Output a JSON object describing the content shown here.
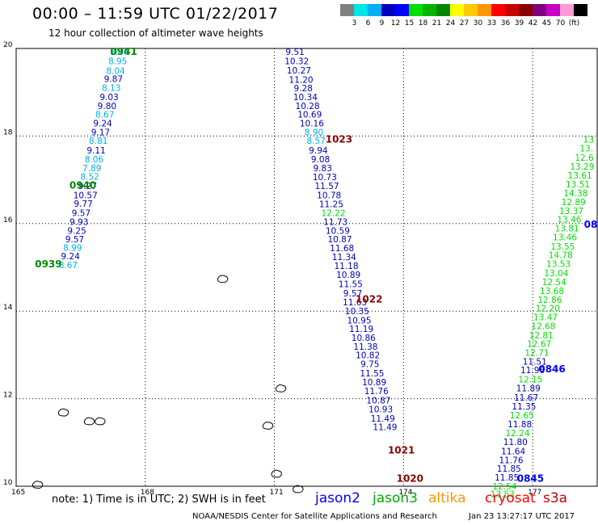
{
  "title": "00:00 – 11:59 UTC 01/22/2017",
  "subtitle": "12 hour collection of altimeter wave heights",
  "legend": {
    "colors": [
      "#808080",
      "#00e5e5",
      "#00b0f0",
      "#0000c0",
      "#0000ff",
      "#00e000",
      "#00b400",
      "#008800",
      "#ffff00",
      "#ffc800",
      "#ff9600",
      "#ff0000",
      "#c80000",
      "#8c0000",
      "#800080",
      "#c800c8",
      "#ff9ad5",
      "#000000"
    ],
    "labels": [
      "3",
      "6",
      "9",
      "12",
      "15",
      "18",
      "21",
      "24",
      "27",
      "30",
      "33",
      "36",
      "39",
      "42",
      "45",
      "70",
      "(ft)"
    ]
  },
  "chart_data": {
    "type": "map",
    "xlim": [
      165,
      178.5
    ],
    "ylim": [
      10,
      20
    ],
    "x_ticks": [
      {
        "v": 165,
        "label": "165"
      },
      {
        "v": 168,
        "label": "168"
      },
      {
        "v": 171,
        "label": "171"
      },
      {
        "v": 174,
        "label": "174"
      },
      {
        "v": 177,
        "label": "177"
      }
    ],
    "y_ticks": [
      {
        "v": 20,
        "label": "20"
      },
      {
        "v": 18,
        "label": "18"
      },
      {
        "v": 16,
        "label": "16"
      },
      {
        "v": 14,
        "label": "14"
      },
      {
        "v": 12,
        "label": "12"
      },
      {
        "v": 10,
        "label": "10"
      }
    ],
    "tracks": [
      {
        "time_labels": [
          {
            "lon": 167.5,
            "lat": 19.85,
            "text": "0941",
            "color": "#008800"
          },
          {
            "lon": 166.55,
            "lat": 16.8,
            "text": "0940",
            "color": "#008800"
          },
          {
            "lon": 165.75,
            "lat": 15.0,
            "text": "0939",
            "color": "#008800"
          }
        ],
        "points": [
          {
            "lon": 167.4,
            "lat": 19.85,
            "v": "8.46",
            "c": "#00b0f0"
          },
          {
            "lon": 167.36,
            "lat": 19.64,
            "v": "8.95",
            "c": "#00b0f0"
          },
          {
            "lon": 167.31,
            "lat": 19.42,
            "v": "8.04",
            "c": "#00b0f0"
          },
          {
            "lon": 167.26,
            "lat": 19.23,
            "v": "9.87",
            "c": "#0000c0"
          },
          {
            "lon": 167.21,
            "lat": 19.03,
            "v": "8.13",
            "c": "#00b0f0"
          },
          {
            "lon": 167.16,
            "lat": 18.82,
            "v": "9.03",
            "c": "#0000c0"
          },
          {
            "lon": 167.11,
            "lat": 18.62,
            "v": "9.80",
            "c": "#0000c0"
          },
          {
            "lon": 167.06,
            "lat": 18.42,
            "v": "8.67",
            "c": "#00b0f0"
          },
          {
            "lon": 167.01,
            "lat": 18.22,
            "v": "9.24",
            "c": "#0000c0"
          },
          {
            "lon": 166.96,
            "lat": 18.02,
            "v": "9.17",
            "c": "#0000c0"
          },
          {
            "lon": 166.91,
            "lat": 17.82,
            "v": "8.81",
            "c": "#00b0f0"
          },
          {
            "lon": 166.86,
            "lat": 17.6,
            "v": "9.11",
            "c": "#0000c0"
          },
          {
            "lon": 166.81,
            "lat": 17.4,
            "v": "8.06",
            "c": "#00b0f0"
          },
          {
            "lon": 166.76,
            "lat": 17.2,
            "v": "7.89",
            "c": "#00b0f0"
          },
          {
            "lon": 166.71,
            "lat": 17.0,
            "v": "8.52",
            "c": "#00b0f0"
          },
          {
            "lon": 166.66,
            "lat": 16.79,
            "v": "9.27",
            "c": "#0000c0"
          },
          {
            "lon": 166.61,
            "lat": 16.58,
            "v": "10.57",
            "c": "#0000c0"
          },
          {
            "lon": 166.56,
            "lat": 16.38,
            "v": "9.77",
            "c": "#0000c0"
          },
          {
            "lon": 166.51,
            "lat": 16.17,
            "v": "9.57",
            "c": "#0000c0"
          },
          {
            "lon": 166.46,
            "lat": 15.97,
            "v": "9.93",
            "c": "#0000c0"
          },
          {
            "lon": 166.41,
            "lat": 15.77,
            "v": "9.25",
            "c": "#0000c0"
          },
          {
            "lon": 166.36,
            "lat": 15.57,
            "v": "9.57",
            "c": "#0000c0"
          },
          {
            "lon": 166.31,
            "lat": 15.38,
            "v": "8.99",
            "c": "#00b0f0"
          },
          {
            "lon": 166.26,
            "lat": 15.18,
            "v": "9.24",
            "c": "#0000c0"
          },
          {
            "lon": 166.21,
            "lat": 14.98,
            "v": "8.67",
            "c": "#00b0f0"
          }
        ]
      },
      {
        "time_labels": [
          {
            "lon": 172.5,
            "lat": 17.85,
            "text": "1023",
            "color": "#8c0000"
          },
          {
            "lon": 173.2,
            "lat": 14.2,
            "text": "1022",
            "color": "#8c0000"
          },
          {
            "lon": 173.95,
            "lat": 10.75,
            "text": "1021",
            "color": "#8c0000"
          },
          {
            "lon": 174.15,
            "lat": 10.1,
            "text": "1020",
            "color": "#8c0000"
          }
        ],
        "points": [
          {
            "lon": 171.48,
            "lat": 19.85,
            "v": "9.51",
            "c": "#0000c0"
          },
          {
            "lon": 171.52,
            "lat": 19.64,
            "v": "10.32",
            "c": "#0000c0"
          },
          {
            "lon": 171.57,
            "lat": 19.43,
            "v": "10.27",
            "c": "#0000c0"
          },
          {
            "lon": 171.62,
            "lat": 19.22,
            "v": "11.20",
            "c": "#0000c0"
          },
          {
            "lon": 171.67,
            "lat": 19.02,
            "v": "9.28",
            "c": "#0000c0"
          },
          {
            "lon": 171.72,
            "lat": 18.82,
            "v": "10.34",
            "c": "#0000c0"
          },
          {
            "lon": 171.77,
            "lat": 18.62,
            "v": "10.28",
            "c": "#0000c0"
          },
          {
            "lon": 171.82,
            "lat": 18.42,
            "v": "10.69",
            "c": "#0000c0"
          },
          {
            "lon": 171.87,
            "lat": 18.22,
            "v": "10.16",
            "c": "#0000c0"
          },
          {
            "lon": 171.92,
            "lat": 18.02,
            "v": "8.90",
            "c": "#00b0f0"
          },
          {
            "lon": 171.97,
            "lat": 17.82,
            "v": "8.57",
            "c": "#00b0f0"
          },
          {
            "lon": 172.02,
            "lat": 17.6,
            "v": "9.94",
            "c": "#0000c0"
          },
          {
            "lon": 172.07,
            "lat": 17.4,
            "v": "9.08",
            "c": "#0000c0"
          },
          {
            "lon": 172.12,
            "lat": 17.2,
            "v": "9.83",
            "c": "#0000c0"
          },
          {
            "lon": 172.17,
            "lat": 16.99,
            "v": "10.73",
            "c": "#0000c0"
          },
          {
            "lon": 172.22,
            "lat": 16.79,
            "v": "11.57",
            "c": "#0000c0"
          },
          {
            "lon": 172.27,
            "lat": 16.58,
            "v": "10.78",
            "c": "#0000c0"
          },
          {
            "lon": 172.32,
            "lat": 16.37,
            "v": "11.25",
            "c": "#0000c0"
          },
          {
            "lon": 172.37,
            "lat": 16.17,
            "v": "12.22",
            "c": "#00e000"
          },
          {
            "lon": 172.42,
            "lat": 15.97,
            "v": "11.73",
            "c": "#0000c0"
          },
          {
            "lon": 172.47,
            "lat": 15.77,
            "v": "10.59",
            "c": "#0000c0"
          },
          {
            "lon": 172.52,
            "lat": 15.57,
            "v": "10.87",
            "c": "#0000c0"
          },
          {
            "lon": 172.57,
            "lat": 15.37,
            "v": "11.68",
            "c": "#0000c0"
          },
          {
            "lon": 172.62,
            "lat": 15.17,
            "v": "11.34",
            "c": "#0000c0"
          },
          {
            "lon": 172.67,
            "lat": 14.96,
            "v": "11.18",
            "c": "#0000c0"
          },
          {
            "lon": 172.72,
            "lat": 14.76,
            "v": "10.89",
            "c": "#0000c0"
          },
          {
            "lon": 172.77,
            "lat": 14.55,
            "v": "11.55",
            "c": "#0000c0"
          },
          {
            "lon": 172.82,
            "lat": 14.34,
            "v": "9.57",
            "c": "#0000c0"
          },
          {
            "lon": 172.87,
            "lat": 14.13,
            "v": "11.63",
            "c": "#0000c0"
          },
          {
            "lon": 172.92,
            "lat": 13.93,
            "v": "10.35",
            "c": "#0000c0"
          },
          {
            "lon": 172.97,
            "lat": 13.72,
            "v": "10.95",
            "c": "#0000c0"
          },
          {
            "lon": 173.02,
            "lat": 13.52,
            "v": "11.19",
            "c": "#0000c0"
          },
          {
            "lon": 173.07,
            "lat": 13.32,
            "v": "10.86",
            "c": "#0000c0"
          },
          {
            "lon": 173.12,
            "lat": 13.12,
            "v": "11.38",
            "c": "#0000c0"
          },
          {
            "lon": 173.17,
            "lat": 12.92,
            "v": "10.82",
            "c": "#0000c0"
          },
          {
            "lon": 173.22,
            "lat": 12.72,
            "v": "9.75",
            "c": "#0000c0"
          },
          {
            "lon": 173.27,
            "lat": 12.51,
            "v": "11.55",
            "c": "#0000c0"
          },
          {
            "lon": 173.32,
            "lat": 12.31,
            "v": "10.89",
            "c": "#0000c0"
          },
          {
            "lon": 173.37,
            "lat": 12.1,
            "v": "11.76",
            "c": "#0000c0"
          },
          {
            "lon": 173.42,
            "lat": 11.89,
            "v": "10.87",
            "c": "#0000c0"
          },
          {
            "lon": 173.47,
            "lat": 11.69,
            "v": "10.93",
            "c": "#0000c0"
          },
          {
            "lon": 173.52,
            "lat": 11.48,
            "v": "11.49",
            "c": "#0000c0"
          },
          {
            "lon": 173.57,
            "lat": 11.28,
            "v": "11.49",
            "c": "#0000c0"
          }
        ]
      },
      {
        "time_labels": [
          {
            "lon": 177.45,
            "lat": 12.6,
            "text": "0846",
            "color": "#0000ff"
          },
          {
            "lon": 176.95,
            "lat": 10.1,
            "text": "0845",
            "color": "#0000ff"
          },
          {
            "lon": 178.35,
            "lat": 15.9,
            "text": "08",
            "color": "#0000ff"
          }
        ],
        "points": [
          {
            "lon": 178.3,
            "lat": 17.85,
            "v": "13",
            "c": "#00e000"
          },
          {
            "lon": 178.25,
            "lat": 17.65,
            "v": "13.",
            "c": "#00e000"
          },
          {
            "lon": 178.2,
            "lat": 17.44,
            "v": "12.6",
            "c": "#00e000"
          },
          {
            "lon": 178.15,
            "lat": 17.23,
            "v": "13.29",
            "c": "#00e000"
          },
          {
            "lon": 178.1,
            "lat": 17.03,
            "v": "13.61",
            "c": "#00e000"
          },
          {
            "lon": 178.05,
            "lat": 16.83,
            "v": "13.51",
            "c": "#00e000"
          },
          {
            "lon": 178.0,
            "lat": 16.62,
            "v": "14.38",
            "c": "#00e000"
          },
          {
            "lon": 177.95,
            "lat": 16.42,
            "v": "12.89",
            "c": "#00e000"
          },
          {
            "lon": 177.9,
            "lat": 16.22,
            "v": "13.37",
            "c": "#00e000"
          },
          {
            "lon": 177.85,
            "lat": 16.02,
            "v": "13.46",
            "c": "#00e000"
          },
          {
            "lon": 177.8,
            "lat": 15.82,
            "v": "13.81",
            "c": "#00e000"
          },
          {
            "lon": 177.75,
            "lat": 15.62,
            "v": "13.46",
            "c": "#00e000"
          },
          {
            "lon": 177.7,
            "lat": 15.41,
            "v": "13.55",
            "c": "#00e000"
          },
          {
            "lon": 177.65,
            "lat": 15.21,
            "v": "14.78",
            "c": "#00e000"
          },
          {
            "lon": 177.6,
            "lat": 15.01,
            "v": "13.53",
            "c": "#00e000"
          },
          {
            "lon": 177.55,
            "lat": 14.8,
            "v": "13.04",
            "c": "#00e000"
          },
          {
            "lon": 177.5,
            "lat": 14.59,
            "v": "12.54",
            "c": "#00e000"
          },
          {
            "lon": 177.45,
            "lat": 14.39,
            "v": "13.68",
            "c": "#00e000"
          },
          {
            "lon": 177.4,
            "lat": 14.19,
            "v": "12.86",
            "c": "#00e000"
          },
          {
            "lon": 177.35,
            "lat": 13.99,
            "v": "12.20",
            "c": "#00e000"
          },
          {
            "lon": 177.3,
            "lat": 13.79,
            "v": "13.47",
            "c": "#00e000"
          },
          {
            "lon": 177.25,
            "lat": 13.59,
            "v": "12.68",
            "c": "#00e000"
          },
          {
            "lon": 177.2,
            "lat": 13.38,
            "v": "12.81",
            "c": "#00e000"
          },
          {
            "lon": 177.15,
            "lat": 13.18,
            "v": "12.67",
            "c": "#00e000"
          },
          {
            "lon": 177.1,
            "lat": 12.98,
            "v": "12.71",
            "c": "#00e000"
          },
          {
            "lon": 177.05,
            "lat": 12.78,
            "v": "11.51",
            "c": "#0000c0"
          },
          {
            "lon": 177.0,
            "lat": 12.58,
            "v": "11.96",
            "c": "#0000c0"
          },
          {
            "lon": 176.95,
            "lat": 12.37,
            "v": "12.15",
            "c": "#00e000"
          },
          {
            "lon": 176.9,
            "lat": 12.17,
            "v": "11.89",
            "c": "#0000c0"
          },
          {
            "lon": 176.85,
            "lat": 11.96,
            "v": "11.67",
            "c": "#0000c0"
          },
          {
            "lon": 176.8,
            "lat": 11.75,
            "v": "11.35",
            "c": "#0000c0"
          },
          {
            "lon": 176.75,
            "lat": 11.55,
            "v": "12.65",
            "c": "#00e000"
          },
          {
            "lon": 176.7,
            "lat": 11.35,
            "v": "11.88",
            "c": "#0000c0"
          },
          {
            "lon": 176.65,
            "lat": 11.14,
            "v": "12.24",
            "c": "#00e000"
          },
          {
            "lon": 176.6,
            "lat": 10.94,
            "v": "11.80",
            "c": "#0000c0"
          },
          {
            "lon": 176.55,
            "lat": 10.73,
            "v": "11.64",
            "c": "#0000c0"
          },
          {
            "lon": 176.5,
            "lat": 10.53,
            "v": "11.76",
            "c": "#0000c0"
          },
          {
            "lon": 176.45,
            "lat": 10.33,
            "v": "11.85",
            "c": "#0000c0"
          },
          {
            "lon": 176.4,
            "lat": 10.13,
            "v": "11.85",
            "c": "#0000c0"
          },
          {
            "lon": 176.35,
            "lat": 9.93,
            "v": "12.54",
            "c": "#00e000"
          },
          {
            "lon": 176.3,
            "lat": 9.75,
            "v": "13.53",
            "c": "#00e000"
          }
        ]
      }
    ],
    "islands": [
      {
        "lon": 166.7,
        "lat": 11.5
      },
      {
        "lon": 166.1,
        "lat": 11.7
      },
      {
        "lon": 166.95,
        "lat": 11.5
      },
      {
        "lon": 165.5,
        "lat": 10.05
      },
      {
        "lon": 169.8,
        "lat": 14.75
      },
      {
        "lon": 171.15,
        "lat": 12.25
      },
      {
        "lon": 170.85,
        "lat": 11.4
      },
      {
        "lon": 171.05,
        "lat": 10.3
      },
      {
        "lon": 171.55,
        "lat": 9.95
      }
    ]
  },
  "note": "note: 1) Time is in UTC; 2) SWH is in feet",
  "satellites": [
    {
      "name": "jason2",
      "color": "#0000ff"
    },
    {
      "name": "jason3",
      "color": "#00aa00"
    },
    {
      "name": "altika",
      "color": "#ff9600"
    },
    {
      "name": "cryosat",
      "color": "#ff0000"
    },
    {
      "name": "s3a",
      "color": "#c80000"
    }
  ],
  "credit": "NOAA/NESDIS Center for Satellite Applications and Research",
  "timestamp": "Jan 23 13:27:17 UTC 2017"
}
